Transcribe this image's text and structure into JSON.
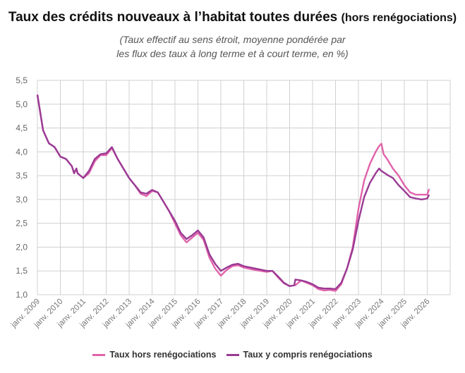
{
  "chart_data": {
    "type": "line",
    "title": "Taux des crédits nouveaux à l’habitat toutes durées",
    "title_suffix": "(hors renégociations)",
    "subtitle_line1": "(Taux effectif au sens étroit, moyenne pondérée par",
    "subtitle_line2": "les flux des taux à long terme et à court terme, en %)",
    "xlim": [
      2009,
      2027
    ],
    "ylim": [
      1.0,
      5.5
    ],
    "grid": true,
    "legend_position": "bottom",
    "y_ticks": [
      "1,0",
      "1,5",
      "2,0",
      "2,5",
      "3,0",
      "3,5",
      "4,0",
      "4,5",
      "5,0",
      "5,5"
    ],
    "x_ticks": [
      "janv. 2009",
      "janv. 2010",
      "janv. 2011",
      "janv. 2012",
      "janv. 2013",
      "janv. 2014",
      "janv. 2015",
      "janv. 2016",
      "janv. 2017",
      "janv. 2018",
      "janv. 2019",
      "janv. 2020",
      "janv. 2021",
      "janv. 2022",
      "janv. 2023",
      "janv. 2024",
      "janv. 2025",
      "janv. 2026"
    ],
    "series": [
      {
        "name": "Taux hors renégociations",
        "color": "#e063aa",
        "points": [
          [
            2009.0,
            5.2
          ],
          [
            2009.25,
            4.45
          ],
          [
            2009.5,
            4.18
          ],
          [
            2009.75,
            4.1
          ],
          [
            2010.0,
            3.9
          ],
          [
            2010.25,
            3.85
          ],
          [
            2010.5,
            3.7
          ],
          [
            2010.6,
            3.55
          ],
          [
            2010.7,
            3.65
          ],
          [
            2010.75,
            3.55
          ],
          [
            2011.0,
            3.45
          ],
          [
            2011.25,
            3.55
          ],
          [
            2011.5,
            3.8
          ],
          [
            2011.75,
            3.93
          ],
          [
            2012.0,
            3.93
          ],
          [
            2012.25,
            4.08
          ],
          [
            2012.5,
            3.85
          ],
          [
            2012.75,
            3.65
          ],
          [
            2013.0,
            3.45
          ],
          [
            2013.25,
            3.3
          ],
          [
            2013.5,
            3.12
          ],
          [
            2013.75,
            3.07
          ],
          [
            2014.0,
            3.18
          ],
          [
            2014.25,
            3.15
          ],
          [
            2014.5,
            2.95
          ],
          [
            2014.75,
            2.75
          ],
          [
            2015.0,
            2.5
          ],
          [
            2015.25,
            2.25
          ],
          [
            2015.5,
            2.1
          ],
          [
            2015.75,
            2.2
          ],
          [
            2016.0,
            2.3
          ],
          [
            2016.25,
            2.15
          ],
          [
            2016.5,
            1.78
          ],
          [
            2016.75,
            1.55
          ],
          [
            2017.0,
            1.4
          ],
          [
            2017.25,
            1.52
          ],
          [
            2017.5,
            1.6
          ],
          [
            2017.75,
            1.62
          ],
          [
            2018.0,
            1.57
          ],
          [
            2018.5,
            1.52
          ],
          [
            2019.0,
            1.48
          ],
          [
            2019.25,
            1.5
          ],
          [
            2019.5,
            1.36
          ],
          [
            2019.75,
            1.24
          ],
          [
            2020.0,
            1.18
          ],
          [
            2020.25,
            1.2
          ],
          [
            2020.5,
            1.3
          ],
          [
            2020.75,
            1.25
          ],
          [
            2021.0,
            1.2
          ],
          [
            2021.25,
            1.12
          ],
          [
            2021.5,
            1.09
          ],
          [
            2021.75,
            1.1
          ],
          [
            2022.0,
            1.08
          ],
          [
            2022.25,
            1.22
          ],
          [
            2022.5,
            1.55
          ],
          [
            2022.75,
            2.0
          ],
          [
            2023.0,
            2.8
          ],
          [
            2023.25,
            3.4
          ],
          [
            2023.5,
            3.75
          ],
          [
            2023.75,
            4.0
          ],
          [
            2023.9,
            4.12
          ],
          [
            2024.0,
            4.17
          ],
          [
            2024.1,
            3.95
          ],
          [
            2024.25,
            3.85
          ],
          [
            2024.5,
            3.65
          ],
          [
            2024.75,
            3.5
          ],
          [
            2025.0,
            3.3
          ],
          [
            2025.25,
            3.15
          ],
          [
            2025.5,
            3.1
          ],
          [
            2025.75,
            3.1
          ],
          [
            2026.0,
            3.1
          ],
          [
            2026.08,
            3.22
          ]
        ]
      },
      {
        "name": "Taux y compris renégociations",
        "color": "#9a3a94",
        "points": [
          [
            2009.0,
            5.2
          ],
          [
            2009.25,
            4.45
          ],
          [
            2009.5,
            4.18
          ],
          [
            2009.75,
            4.1
          ],
          [
            2010.0,
            3.9
          ],
          [
            2010.25,
            3.85
          ],
          [
            2010.5,
            3.7
          ],
          [
            2010.6,
            3.55
          ],
          [
            2010.7,
            3.65
          ],
          [
            2010.75,
            3.55
          ],
          [
            2011.0,
            3.45
          ],
          [
            2011.25,
            3.6
          ],
          [
            2011.5,
            3.85
          ],
          [
            2011.75,
            3.95
          ],
          [
            2012.0,
            3.97
          ],
          [
            2012.25,
            4.1
          ],
          [
            2012.5,
            3.85
          ],
          [
            2012.75,
            3.65
          ],
          [
            2013.0,
            3.45
          ],
          [
            2013.25,
            3.3
          ],
          [
            2013.5,
            3.15
          ],
          [
            2013.75,
            3.12
          ],
          [
            2014.0,
            3.2
          ],
          [
            2014.25,
            3.15
          ],
          [
            2014.5,
            2.95
          ],
          [
            2014.75,
            2.75
          ],
          [
            2015.0,
            2.55
          ],
          [
            2015.25,
            2.3
          ],
          [
            2015.5,
            2.17
          ],
          [
            2015.75,
            2.25
          ],
          [
            2016.0,
            2.35
          ],
          [
            2016.25,
            2.2
          ],
          [
            2016.5,
            1.85
          ],
          [
            2016.75,
            1.65
          ],
          [
            2017.0,
            1.5
          ],
          [
            2017.25,
            1.57
          ],
          [
            2017.5,
            1.63
          ],
          [
            2017.75,
            1.65
          ],
          [
            2018.0,
            1.6
          ],
          [
            2018.5,
            1.55
          ],
          [
            2019.0,
            1.5
          ],
          [
            2019.25,
            1.5
          ],
          [
            2019.5,
            1.38
          ],
          [
            2019.75,
            1.25
          ],
          [
            2020.0,
            1.18
          ],
          [
            2020.2,
            1.2
          ],
          [
            2020.25,
            1.32
          ],
          [
            2020.5,
            1.3
          ],
          [
            2020.75,
            1.27
          ],
          [
            2021.0,
            1.22
          ],
          [
            2021.25,
            1.15
          ],
          [
            2021.5,
            1.13
          ],
          [
            2021.75,
            1.13
          ],
          [
            2022.0,
            1.12
          ],
          [
            2022.25,
            1.25
          ],
          [
            2022.5,
            1.55
          ],
          [
            2022.75,
            1.95
          ],
          [
            2023.0,
            2.55
          ],
          [
            2023.25,
            3.05
          ],
          [
            2023.5,
            3.35
          ],
          [
            2023.75,
            3.55
          ],
          [
            2023.9,
            3.65
          ],
          [
            2024.0,
            3.6
          ],
          [
            2024.25,
            3.52
          ],
          [
            2024.5,
            3.45
          ],
          [
            2024.75,
            3.3
          ],
          [
            2025.0,
            3.18
          ],
          [
            2025.25,
            3.05
          ],
          [
            2025.5,
            3.02
          ],
          [
            2025.75,
            3.0
          ],
          [
            2026.0,
            3.02
          ],
          [
            2026.08,
            3.1
          ]
        ]
      }
    ]
  }
}
